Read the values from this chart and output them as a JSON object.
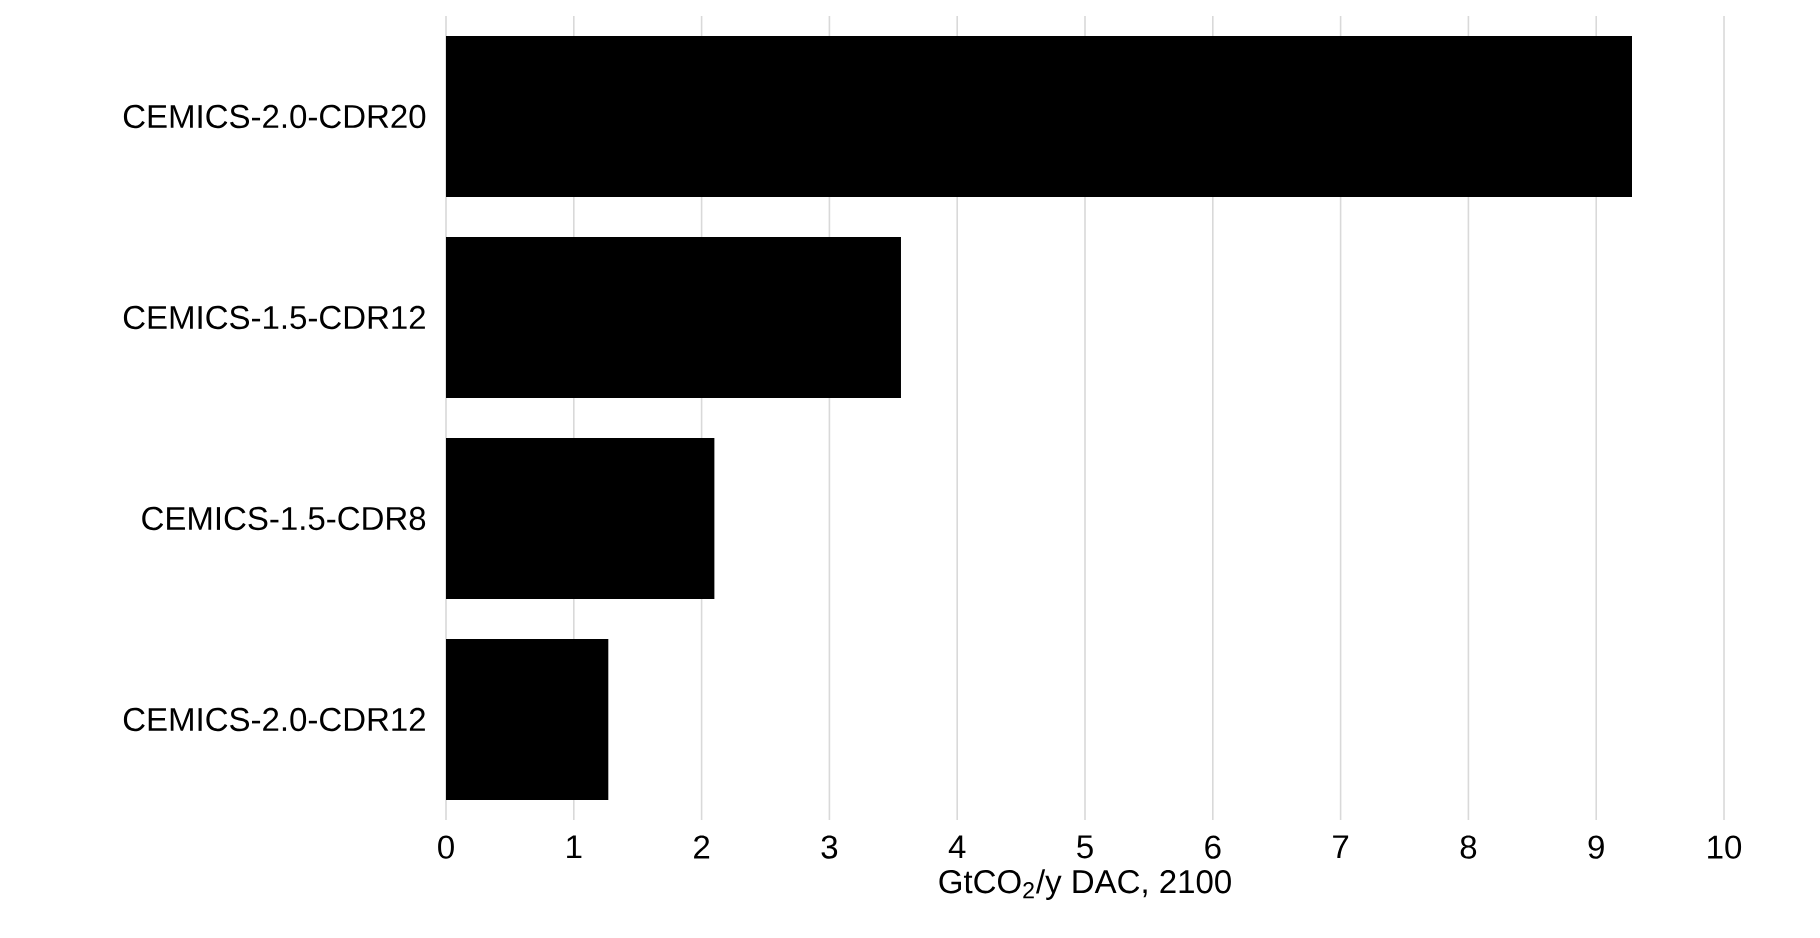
{
  "chart_data": {
    "type": "bar",
    "orientation": "horizontal",
    "categories": [
      "CEMICS-2.0-CDR20",
      "CEMICS-1.5-CDR12",
      "CEMICS-1.5-CDR8",
      "CEMICS-2.0-CDR12"
    ],
    "values": [
      9.28,
      3.56,
      2.1,
      1.27
    ],
    "color": "#000000",
    "xlabel": "GtCO$_{2}$/y DAC, 2100",
    "xlim": [
      0,
      10
    ],
    "xticks": [
      0,
      1,
      2,
      3,
      4,
      5,
      6,
      7,
      8,
      9,
      10
    ],
    "grid": "x"
  }
}
